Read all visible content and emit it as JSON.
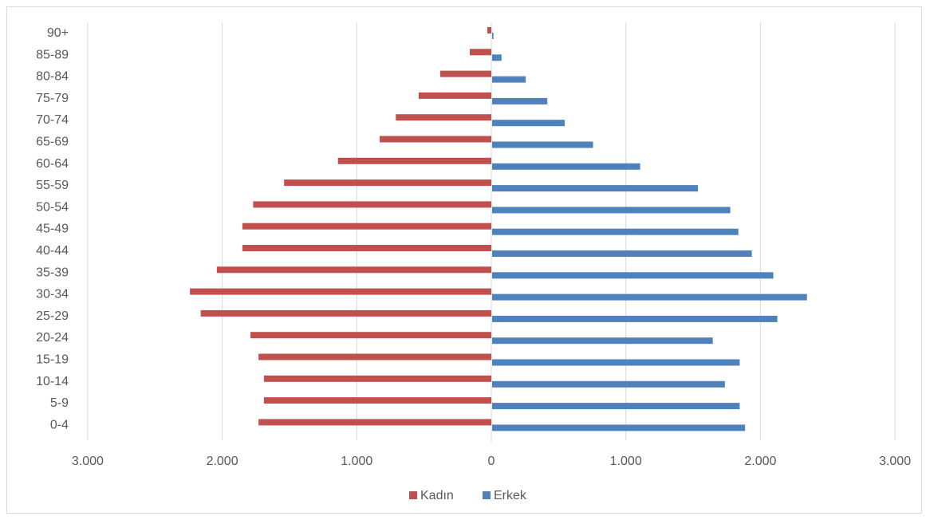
{
  "chart_data": {
    "type": "bar",
    "orientation": "horizontal",
    "layout": "population-pyramid",
    "categories": [
      "0-4",
      "5-9",
      "10-14",
      "15-19",
      "20-24",
      "25-29",
      "30-34",
      "35-39",
      "40-44",
      "45-49",
      "50-54",
      "55-59",
      "60-64",
      "65-69",
      "70-74",
      "75-79",
      "80-84",
      "85-89",
      "90+"
    ],
    "series": [
      {
        "name": "Kadın",
        "color": "#c0504d",
        "side": "left",
        "values": [
          1730,
          1690,
          1690,
          1730,
          1790,
          2160,
          2240,
          2040,
          1850,
          1850,
          1770,
          1540,
          1140,
          830,
          710,
          540,
          380,
          160,
          30
        ]
      },
      {
        "name": "Erkek",
        "color": "#4f81bd",
        "side": "right",
        "values": [
          1880,
          1840,
          1730,
          1840,
          1640,
          2120,
          2340,
          2090,
          1930,
          1830,
          1770,
          1530,
          1100,
          750,
          540,
          410,
          250,
          70,
          10
        ]
      }
    ],
    "xlim": [
      -3000,
      3000
    ],
    "xticks": [
      -3000,
      -2000,
      -1000,
      0,
      1000,
      2000,
      3000
    ],
    "xtick_labels": [
      "3.000",
      "2.000",
      "1.000",
      "0",
      "1.000",
      "2.000",
      "3.000"
    ],
    "title": "",
    "xlabel": "",
    "ylabel": "",
    "grid": "vertical",
    "gridline_color": "#d9d9d9",
    "legend_position": "bottom"
  }
}
